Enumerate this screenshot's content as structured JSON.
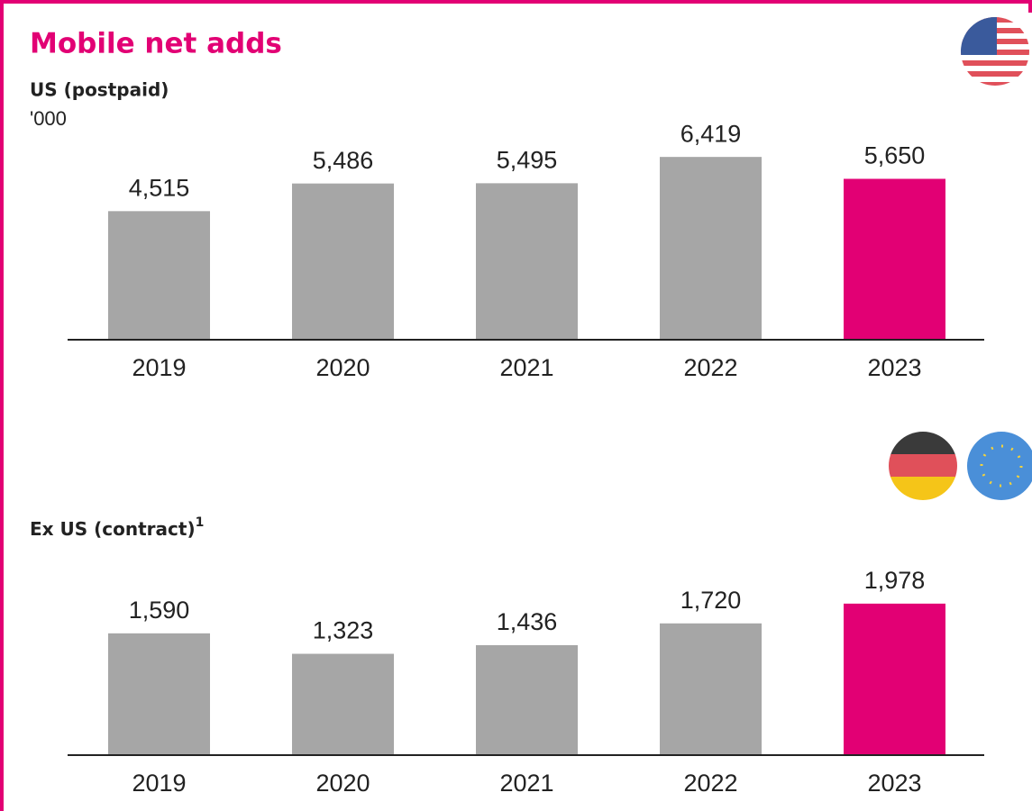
{
  "chart_data": [
    {
      "type": "bar",
      "title": "Mobile net adds",
      "subtitle": "US (postpaid)",
      "unit": "'000",
      "categories": [
        "2019",
        "2020",
        "2021",
        "2022",
        "2023"
      ],
      "values": [
        4515,
        5486,
        5495,
        6419,
        5650
      ],
      "value_labels": [
        "4,515",
        "5,486",
        "5,495",
        "6,419",
        "5,650"
      ],
      "colors": [
        "#a6a6a6",
        "#a6a6a6",
        "#a6a6a6",
        "#a6a6a6",
        "#e20074"
      ],
      "ylim": [
        0,
        10000
      ]
    },
    {
      "type": "bar",
      "subtitle": "Ex US (contract)",
      "footnote": "1",
      "categories": [
        "2019",
        "2020",
        "2021",
        "2022",
        "2023"
      ],
      "values": [
        1590,
        1323,
        1436,
        1720,
        1978
      ],
      "value_labels": [
        "1,590",
        "1,323",
        "1,436",
        "1,720",
        "1,978"
      ],
      "colors": [
        "#a6a6a6",
        "#a6a6a6",
        "#a6a6a6",
        "#a6a6a6",
        "#e20074"
      ],
      "ylim": [
        0,
        4000
      ]
    }
  ]
}
